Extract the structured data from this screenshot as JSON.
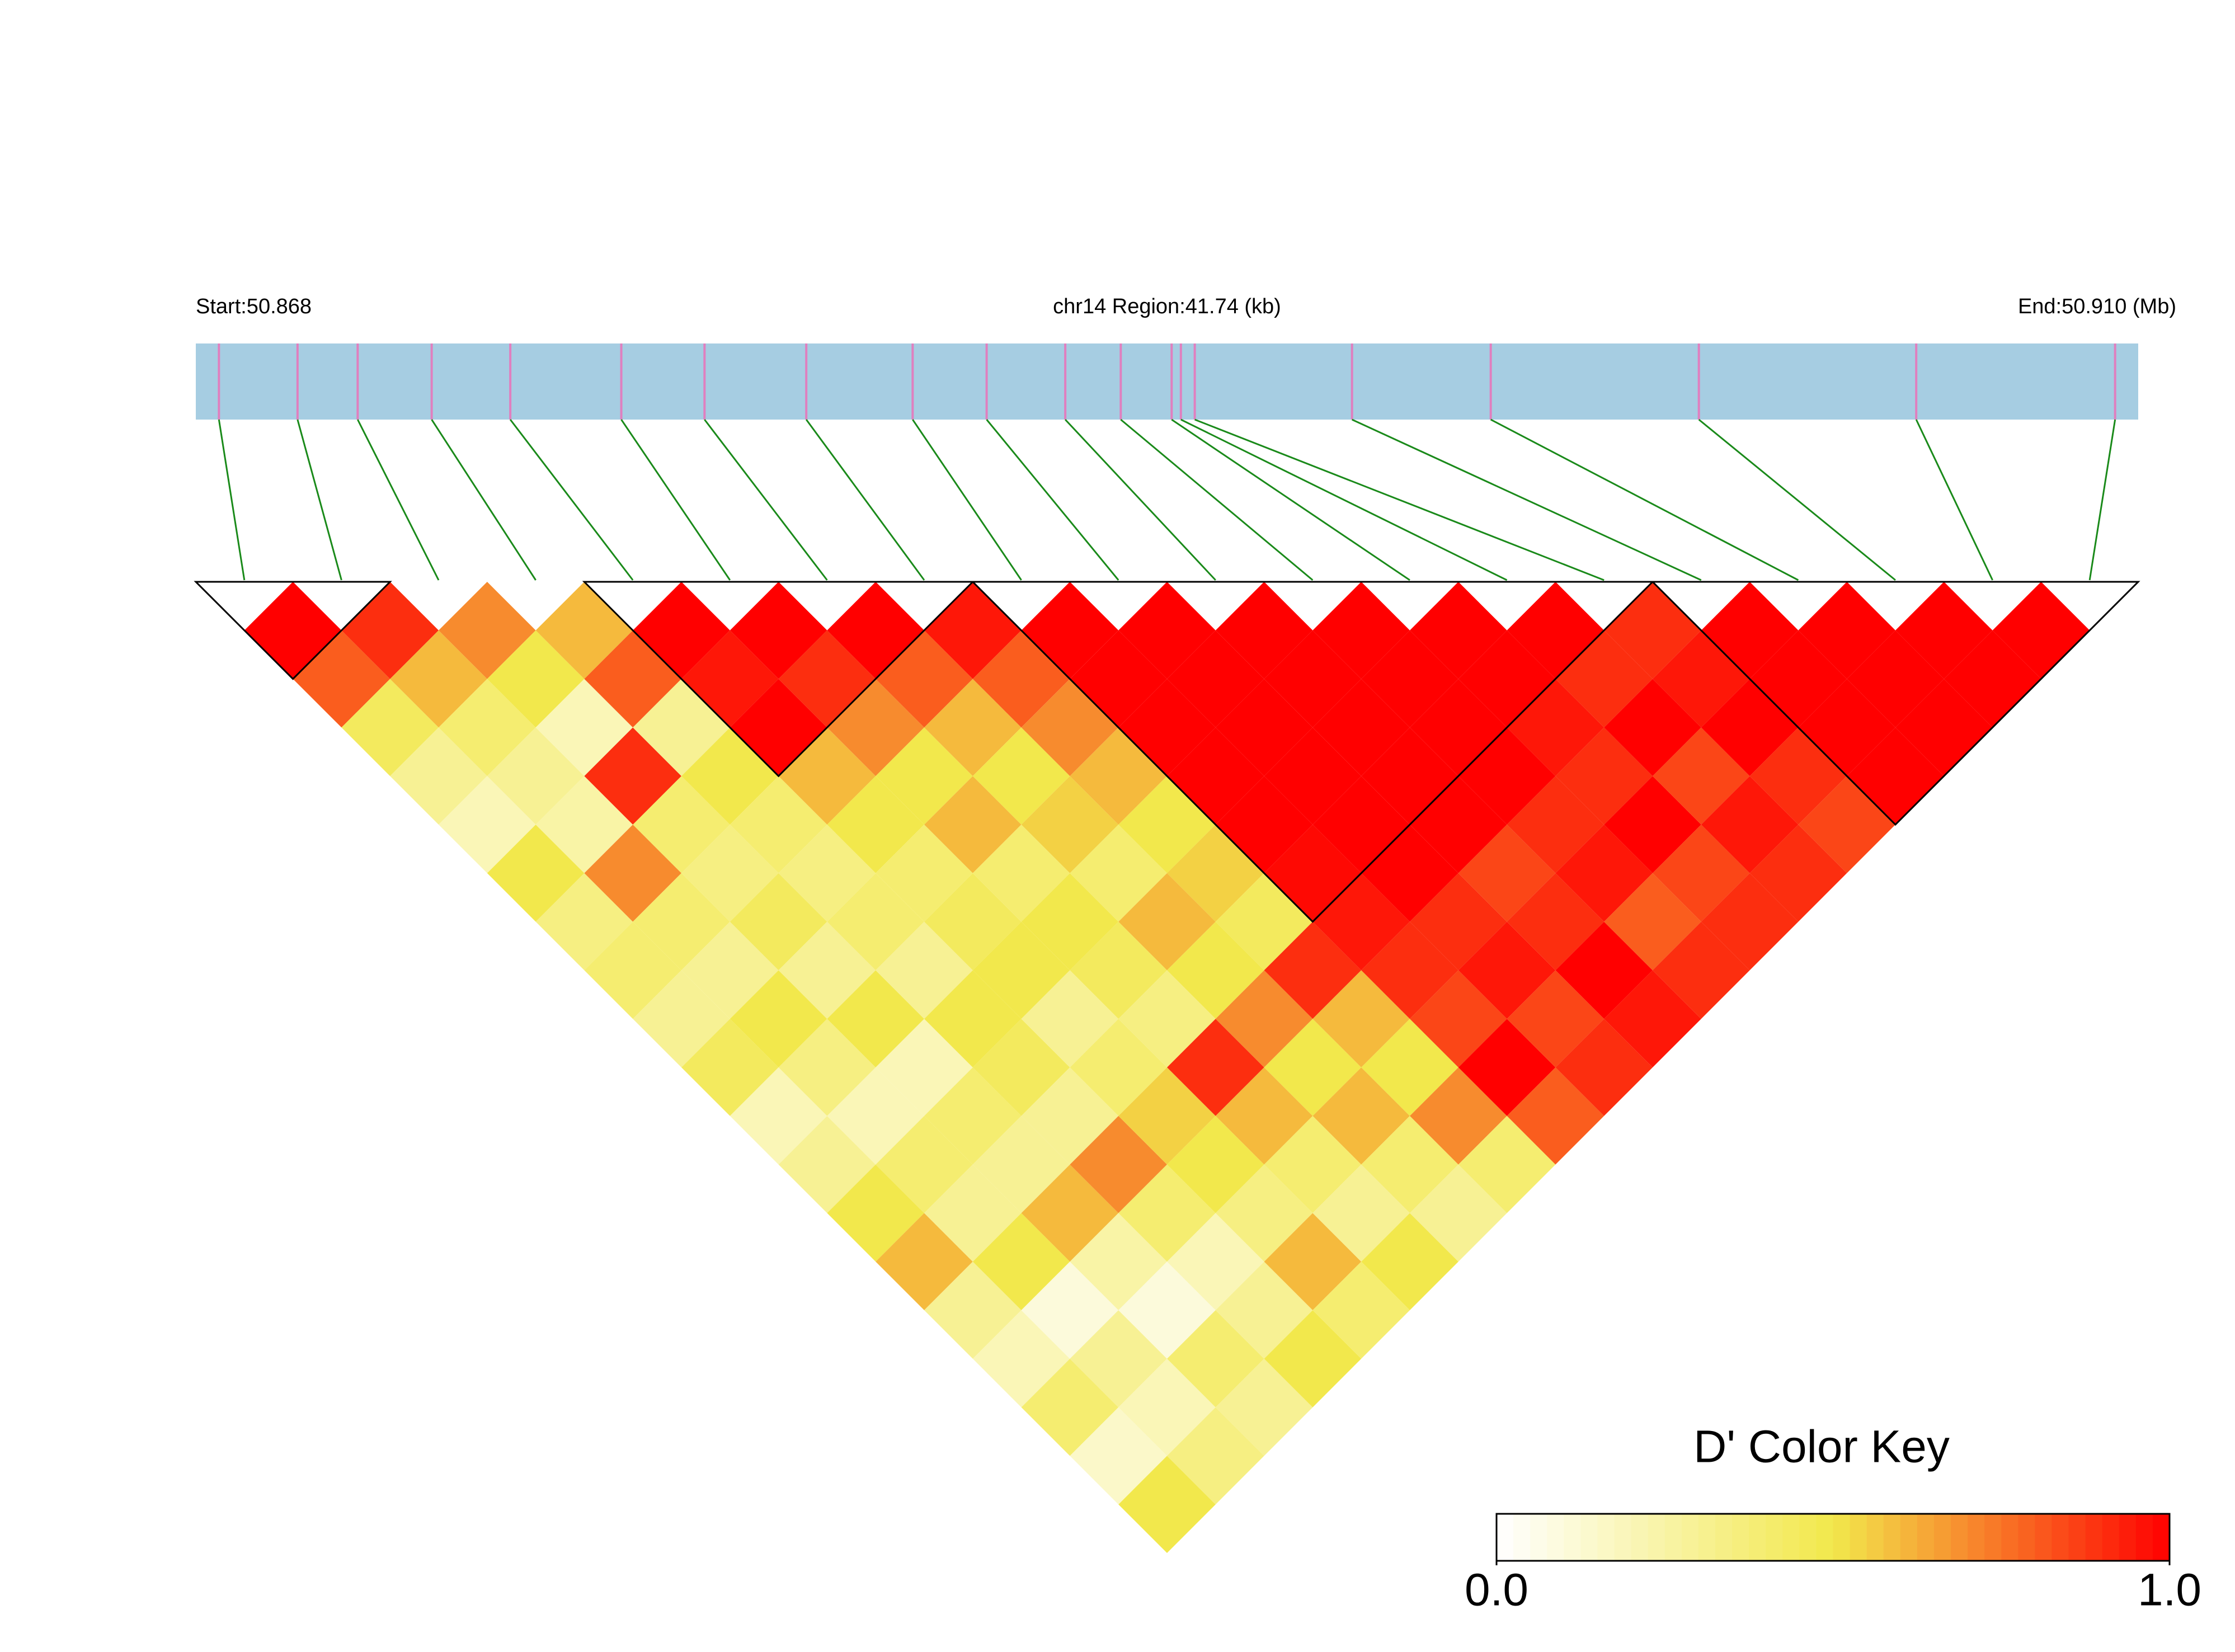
{
  "chart_data": {
    "type": "ld-heatmap",
    "start_label": "Start:50.868",
    "region_label": "chr14 Region:41.74 (kb)",
    "end_label": "End:50.910 (Mb)",
    "key_title": "D' Color Key",
    "xlim": [
      50.868,
      50.91
    ],
    "positions": [
      50.8685,
      50.8702,
      50.8715,
      50.8731,
      50.8748,
      50.8772,
      50.879,
      50.8812,
      50.8835,
      50.8851,
      50.8868,
      50.888,
      50.8891,
      50.8893,
      50.8896,
      50.893,
      50.896,
      50.9005,
      50.9052,
      50.9095
    ],
    "ld": [
      [
        1,
        0.8,
        0.45,
        0.3,
        0.2,
        0.5,
        0.35,
        0.4,
        0.3,
        0.45,
        0.2,
        0.3,
        0.5,
        0.6,
        0.3,
        0.2,
        0.4,
        0.15,
        0.5
      ],
      [
        0.9,
        0.6,
        0.4,
        0.3,
        0.25,
        0.7,
        0.4,
        0.3,
        0.5,
        0.35,
        0.2,
        0.4,
        0.3,
        0.5,
        0.1,
        0.3,
        0.2,
        0.35
      ],
      [
        0.7,
        0.5,
        0.2,
        0.9,
        0.4,
        0.35,
        0.45,
        0.3,
        0.5,
        0.2,
        0.4,
        0.3,
        0.6,
        0.25,
        0.1,
        0.4,
        0.3
      ],
      [
        0.6,
        0.8,
        0.3,
        0.5,
        0.4,
        0.35,
        0.4,
        0.3,
        0.5,
        0.45,
        0.3,
        0.7,
        0.4,
        0.2,
        0.3,
        0.5
      ],
      [
        1,
        0.95,
        1,
        0.6,
        0.5,
        0.4,
        0.45,
        0.5,
        0.3,
        0.4,
        0.55,
        0.5,
        0.35,
        0.6,
        0.4
      ],
      [
        1,
        0.9,
        0.7,
        0.5,
        0.6,
        0.4,
        0.5,
        0.45,
        0.35,
        0.9,
        0.6,
        0.4,
        0.3,
        0.5
      ],
      [
        1,
        0.8,
        0.6,
        0.5,
        0.55,
        0.4,
        0.6,
        0.5,
        0.7,
        0.5,
        0.6,
        0.4,
        0.3
      ],
      [
        0.95,
        0.8,
        0.7,
        0.6,
        0.5,
        0.55,
        0.45,
        0.9,
        0.6,
        0.5,
        0.7,
        0.4
      ],
      [
        1,
        1,
        1,
        1,
        1,
        0.98,
        0.95,
        0.9,
        0.85,
        1,
        0.8
      ],
      [
        1,
        1,
        1,
        1,
        1,
        1,
        0.9,
        0.95,
        0.85,
        0.9
      ],
      [
        1,
        1,
        1,
        1,
        1,
        0.85,
        0.9,
        1,
        0.95
      ],
      [
        1,
        1,
        1,
        1,
        0.9,
        0.95,
        0.8,
        0.9
      ],
      [
        1,
        1,
        0.95,
        0.9,
        1,
        0.85,
        0.9
      ],
      [
        1,
        0.9,
        1,
        0.85,
        0.95,
        0.9
      ],
      [
        0.9,
        0.95,
        1,
        0.9,
        0.85
      ],
      [
        1,
        1,
        1,
        1
      ],
      [
        1,
        1,
        1
      ],
      [
        1,
        1
      ],
      [
        1
      ]
    ],
    "blocks": [
      [
        0,
        1
      ],
      [
        4,
        7
      ],
      [
        8,
        14
      ],
      [
        15,
        19
      ]
    ],
    "colorscale": [
      "#ffffff",
      "#f2e84c",
      "#ff0000"
    ],
    "gene_color": "#a6cde2",
    "snp_color": "#e07fbf",
    "link_color": "#1a8a1a",
    "key_lim": [
      0,
      1
    ],
    "key_ticks": [
      {
        "value": 0,
        "label": "0.0"
      },
      {
        "value": 1,
        "label": "1.0"
      }
    ]
  }
}
